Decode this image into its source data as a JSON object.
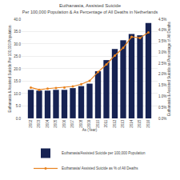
{
  "chart_data": {
    "type": "bar",
    "title": "Euthanasia, Assisted Suicide",
    "subtitle": "Per 100,000 Population & As Percentage of All Deaths in Netherlands",
    "categories": [
      "2002",
      "2003",
      "2004",
      "2005",
      "2006",
      "2007",
      "2008",
      "2009",
      "2010",
      "2011",
      "2012",
      "2013",
      "2014",
      "2015",
      "2016"
    ],
    "series": [
      {
        "name": "Euthanasia/Assisted Suicide per 100,000 Population",
        "type": "bar",
        "color": "#162252",
        "values": [
          11.5,
          11.2,
          11.2,
          11.5,
          11.5,
          12.2,
          13.0,
          14.0,
          19.0,
          23.5,
          28.0,
          31.5,
          34.0,
          33.5,
          38.5
        ]
      },
      {
        "name": "Euthanasia/ Assisted Suicide as % of All Deaths",
        "type": "line",
        "color": "#e8821e",
        "marker": "circle",
        "axis": "y2",
        "values": [
          1.4,
          1.3,
          1.35,
          1.38,
          1.4,
          1.45,
          1.55,
          1.7,
          2.1,
          2.45,
          2.85,
          3.2,
          3.7,
          3.65,
          3.9
        ]
      }
    ],
    "xlabel": "As (Year)",
    "ylabel": "Euthanasia & Assisted Suicide Per 100,000 Population",
    "y2label": "Euthanasia & Assisted Suicide as Percentage of All Deaths",
    "ylim": [
      0.0,
      40.0
    ],
    "yticks": [
      {
        "value": 0.0,
        "label": "0.0"
      },
      {
        "value": 5.0,
        "label": "5.0"
      },
      {
        "value": 10.0,
        "label": "10.0"
      },
      {
        "value": 15.0,
        "label": "15.0"
      },
      {
        "value": 20.0,
        "label": "20.0"
      },
      {
        "value": 25.0,
        "label": "25.0"
      },
      {
        "value": 30.0,
        "label": "30.0"
      },
      {
        "value": 35.0,
        "label": "35.0"
      },
      {
        "value": 40.0,
        "label": "40.0"
      }
    ],
    "y2lim": [
      0.0,
      4.5
    ],
    "y2ticks": [
      {
        "value": 0.0,
        "label": "0.0%"
      },
      {
        "value": 0.5,
        "label": "0.5%"
      },
      {
        "value": 1.0,
        "label": "1.0%"
      },
      {
        "value": 1.5,
        "label": "1.5%"
      },
      {
        "value": 2.0,
        "label": "2.0%"
      },
      {
        "value": 2.5,
        "label": "2.5%"
      },
      {
        "value": 3.0,
        "label": "3.0%"
      },
      {
        "value": 3.5,
        "label": "3.5%"
      },
      {
        "value": 4.0,
        "label": "4.0%"
      },
      {
        "value": 4.5,
        "label": "4.5%"
      }
    ],
    "grid": true,
    "legend": "bottom"
  }
}
